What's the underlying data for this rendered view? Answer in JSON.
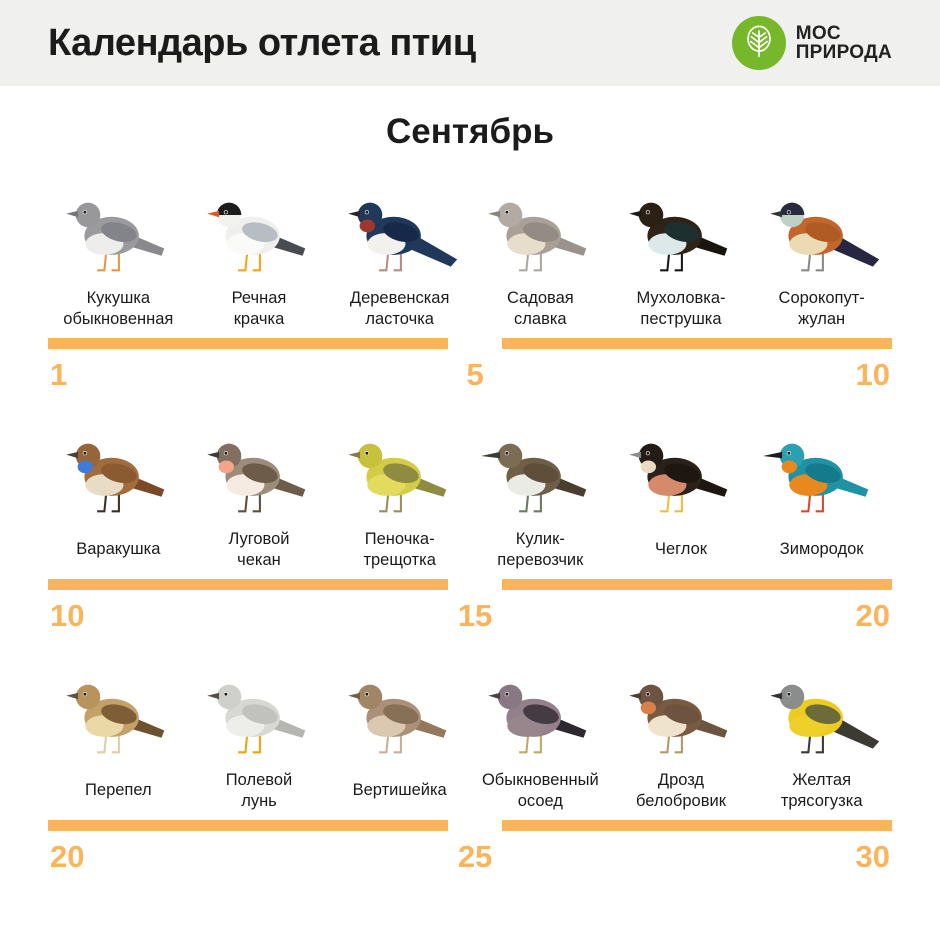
{
  "header": {
    "title": "Календарь отлета птиц",
    "logo": {
      "line1": "МОС",
      "line2": "ПРИРОДА",
      "color": "#76B82A"
    }
  },
  "month": "Сентябрь",
  "colors": {
    "accent_orange": "#F9B45C",
    "header_bg": "#F0F1EE",
    "text": "#1B1B1B"
  },
  "rows": [
    {
      "timeline": {
        "start": "1",
        "mid": "5",
        "end": "10"
      },
      "birds": [
        {
          "id": "cuckoo",
          "label": [
            "Кукушка",
            "обыкновенная"
          ],
          "colors": {
            "body": "#9B9B9D",
            "head": "#98989A",
            "wing": "#83838A",
            "belly": "#EDEDEB",
            "tail": "#8A8A8E",
            "beak": "#75757A",
            "leg": "#E29A44"
          },
          "long_beak": false,
          "long_tail": false
        },
        {
          "id": "common-tern",
          "label": [
            "Речная",
            "крачка"
          ],
          "colors": {
            "body": "#EFEFED",
            "head": "#F2F2F0",
            "cap": "#1C1C1C",
            "wing": "#B7BDC3",
            "belly": "#FAFAF8",
            "tail": "#484C50",
            "beak": "#E2561F",
            "leg": "#F2A519"
          },
          "long_beak": false,
          "long_tail": false
        },
        {
          "id": "barn-swallow",
          "label": [
            "Деревенская",
            "ласточка"
          ],
          "colors": {
            "body": "#20395B",
            "head": "#20395B",
            "accent": "#9E372C",
            "wing": "#16294A",
            "belly": "#F3F1ED",
            "tail": "#20395B",
            "beak": "#26262A",
            "leg": "#B98B85"
          },
          "long_beak": false,
          "long_tail": true
        },
        {
          "id": "garden-warbler",
          "label": [
            "Садовая",
            "славка"
          ],
          "colors": {
            "body": "#A9A098",
            "head": "#B3ABA3",
            "wing": "#948B84",
            "belly": "#E6DECB",
            "tail": "#9A938C",
            "beak": "#8A8279",
            "leg": "#AFA79F"
          },
          "long_beak": false,
          "long_tail": false
        },
        {
          "id": "pied-flycatcher",
          "label": [
            "Мухоловка-",
            "пеструшка"
          ],
          "colors": {
            "body": "#2F2317",
            "head": "#2B2013",
            "wing": "#1E2F30",
            "belly": "#DCE9E8",
            "tail": "#1A140E",
            "beak": "#1A1A1A",
            "leg": "#1A1A1A"
          },
          "long_beak": false,
          "long_tail": false
        },
        {
          "id": "red-backed-shrike",
          "label": [
            "Сорокопут-",
            "жулан"
          ],
          "colors": {
            "body": "#C2662B",
            "head": "#BDD1C7",
            "cap": "#2A2A3E",
            "wing": "#B05A24",
            "belly": "#EBDBB4",
            "tail": "#272742",
            "beak": "#33333A",
            "leg": "#8A8A8A"
          },
          "long_beak": false,
          "long_tail": true
        }
      ]
    },
    {
      "timeline": {
        "start": "10",
        "mid": "15",
        "end": "20"
      },
      "birds": [
        {
          "id": "bluethroat",
          "label": [
            "Варакушка"
          ],
          "colors": {
            "body": "#A26C3C",
            "head": "#96653A",
            "accent": "#3F7CD9",
            "wing": "#8A5A30",
            "belly": "#E9DCC6",
            "tail": "#7A4A28",
            "beak": "#44403A",
            "leg": "#3E3029"
          },
          "long_beak": false,
          "long_tail": false
        },
        {
          "id": "whinchat",
          "label": [
            "Луговой",
            "чекан"
          ],
          "colors": {
            "body": "#9C8C7A",
            "head": "#81705F",
            "accent": "#F2A588",
            "wing": "#6E5C4A",
            "belly": "#F5EBE3",
            "tail": "#6E5C4A",
            "beak": "#3A3A36",
            "leg": "#5E4E3E"
          },
          "long_beak": false,
          "long_tail": false
        },
        {
          "id": "wood-warbler",
          "label": [
            "Пеночка-",
            "трещотка"
          ],
          "colors": {
            "body": "#D3CC47",
            "head": "#C8C13D",
            "wing": "#8F8C42",
            "belly": "#E2DB5E",
            "tail": "#8F8C42",
            "beak": "#8A7A3E",
            "leg": "#9C8C5C"
          },
          "long_beak": false,
          "long_tail": false
        },
        {
          "id": "common-sandpiper",
          "label": [
            "Кулик-",
            "перевозчик"
          ],
          "colors": {
            "body": "#6F5F47",
            "head": "#7C6C54",
            "wing": "#5E4E3A",
            "belly": "#EBEBE5",
            "tail": "#4A3E30",
            "beak": "#3C3C34",
            "leg": "#6E7A5E"
          },
          "long_beak": true,
          "long_tail": false
        },
        {
          "id": "hobby",
          "label": [
            "Чеглок"
          ],
          "colors": {
            "body": "#2A211A",
            "head": "#241B14",
            "accent": "#E9DBC1",
            "wing": "#1E1610",
            "belly": "#D6896B",
            "tail": "#1E1610",
            "beak": "#8A8A8A",
            "leg": "#E8C23E"
          },
          "long_beak": false,
          "long_tail": false
        },
        {
          "id": "kingfisher",
          "label": [
            "Зимородок"
          ],
          "colors": {
            "body": "#1F93A5",
            "head": "#2AA0B0",
            "accent": "#E8891E",
            "wing": "#157A8C",
            "belly": "#E8891E",
            "tail": "#1F93A5",
            "beak": "#1C1C1C",
            "leg": "#D84A2A"
          },
          "long_beak": true,
          "long_tail": false
        }
      ]
    },
    {
      "timeline": {
        "start": "20",
        "mid": "25",
        "end": "30"
      },
      "birds": [
        {
          "id": "quail",
          "label": [
            "Перепел"
          ],
          "colors": {
            "body": "#C3A168",
            "head": "#B8935C",
            "wing": "#7E5E36",
            "belly": "#EAD8A6",
            "tail": "#6E5230",
            "beak": "#5E5246",
            "leg": "#DECFA2"
          },
          "long_beak": false,
          "long_tail": false
        },
        {
          "id": "hen-harrier",
          "label": [
            "Полевой",
            "лунь"
          ],
          "colors": {
            "body": "#D7D7D3",
            "head": "#CFCFCB",
            "wing": "#C1C1BD",
            "belly": "#EDEDE9",
            "tail": "#B5B5B1",
            "beak": "#55504A",
            "leg": "#F0A409"
          },
          "long_beak": false,
          "long_tail": false
        },
        {
          "id": "wryneck",
          "label": [
            "Вертишейка"
          ],
          "colors": {
            "body": "#AC9077",
            "head": "#A08664",
            "wing": "#877056",
            "belly": "#DBC8B1",
            "tail": "#93785E",
            "beak": "#6E5E46",
            "leg": "#C7B095"
          },
          "long_beak": false,
          "long_tail": false
        },
        {
          "id": "honey-buzzard",
          "label": [
            "Обыкновенный",
            "осоед"
          ],
          "colors": {
            "body": "#92808A",
            "head": "#887884",
            "wing": "#453B43",
            "belly": "#97878D",
            "tail": "#2E2830",
            "beak": "#4A443E",
            "leg": "#C2A86A"
          },
          "long_beak": false,
          "long_tail": false
        },
        {
          "id": "redwing",
          "label": [
            "Дрозд",
            "белобровик"
          ],
          "colors": {
            "body": "#7A5B42",
            "head": "#6E5340",
            "accent": "#D9804A",
            "wing": "#6E5340",
            "belly": "#EFE3CD",
            "tail": "#6E5340",
            "beak": "#4E3E2C",
            "leg": "#B09A6A"
          },
          "long_beak": false,
          "long_tail": false
        },
        {
          "id": "yellow-wagtail",
          "label": [
            "Желтая",
            "трясогузка"
          ],
          "colors": {
            "body": "#EDCB1F",
            "head": "#8A8D8B",
            "wing": "#6C6C3B",
            "belly": "#EFCF2A",
            "tail": "#3B3B33",
            "beak": "#333333",
            "leg": "#3A3A3A"
          },
          "long_beak": false,
          "long_tail": true
        }
      ]
    }
  ]
}
